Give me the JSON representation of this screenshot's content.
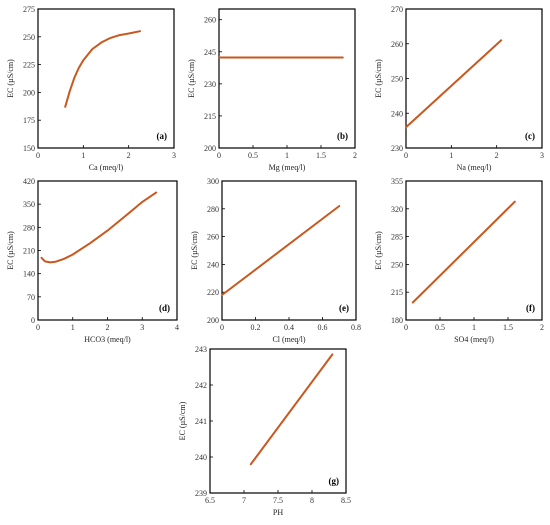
{
  "colors": {
    "curve": "#c9581f",
    "frame": "#000000",
    "tick_text": "#333333"
  },
  "chart_data": [
    {
      "type": "line",
      "tag": "(a)",
      "xlabel": "Ca (meq/l)",
      "ylabel": "EC (µS/cm)",
      "xlim": [
        0,
        3
      ],
      "ylim": [
        150,
        275
      ],
      "xticks": [
        "0",
        "1",
        "2",
        "3"
      ],
      "yticks": [
        "150",
        "175",
        "200",
        "225",
        "250",
        "275"
      ],
      "grid": false,
      "series": [
        {
          "x": [
            0.6,
            0.7,
            0.8,
            0.9,
            1.0,
            1.2,
            1.4,
            1.6,
            1.8,
            2.0,
            2.25
          ],
          "y": [
            187,
            201,
            213,
            222,
            229,
            239,
            245,
            249,
            251.5,
            253,
            255
          ]
        }
      ]
    },
    {
      "type": "line",
      "tag": "(b)",
      "xlabel": "Mg (meq/l)",
      "ylabel": "EC (µS/cm)",
      "xlim": [
        0,
        2
      ],
      "ylim": [
        200,
        265
      ],
      "xticks": [
        "0",
        "0.5",
        "1",
        "1.5",
        "2"
      ],
      "yticks": [
        "200",
        "215",
        "230",
        "245",
        "260"
      ],
      "grid": false,
      "series": [
        {
          "x": [
            0,
            1.82
          ],
          "y": [
            242.3,
            242.3
          ]
        }
      ]
    },
    {
      "type": "line",
      "tag": "(c)",
      "xlabel": "Na (meq/l)",
      "ylabel": "EC (µS/cm)",
      "xlim": [
        0,
        3
      ],
      "ylim": [
        230,
        270
      ],
      "xticks": [
        "0",
        "1",
        "2",
        "3"
      ],
      "yticks": [
        "230",
        "240",
        "250",
        "260",
        "270"
      ],
      "grid": false,
      "series": [
        {
          "x": [
            0,
            2.1
          ],
          "y": [
            236,
            261
          ]
        }
      ]
    },
    {
      "type": "line",
      "tag": "(d)",
      "xlabel": "HCO3 (meq/l)",
      "ylabel": "EC (µS/cm)",
      "xlim": [
        0,
        4
      ],
      "ylim": [
        0,
        420
      ],
      "xticks": [
        "0",
        "1",
        "2",
        "3",
        "4"
      ],
      "yticks": [
        "0",
        "70",
        "140",
        "210",
        "280",
        "350",
        "420"
      ],
      "grid": false,
      "series": [
        {
          "x": [
            0.1,
            0.2,
            0.35,
            0.5,
            0.75,
            1.0,
            1.5,
            2.0,
            2.5,
            3.0,
            3.4
          ],
          "y": [
            188,
            177,
            174,
            176,
            185,
            198,
            232,
            270,
            313,
            357,
            385
          ]
        }
      ]
    },
    {
      "type": "line",
      "tag": "(e)",
      "xlabel": "Cl (meq/l)",
      "ylabel": "EC (µS/cm)",
      "xlim": [
        0,
        0.8
      ],
      "ylim": [
        200,
        300
      ],
      "xticks": [
        "0",
        "0.2",
        "0.4",
        "0.6",
        "0.8"
      ],
      "yticks": [
        "200",
        "220",
        "240",
        "260",
        "280",
        "300"
      ],
      "grid": false,
      "series": [
        {
          "x": [
            0,
            0.7
          ],
          "y": [
            218,
            282
          ]
        }
      ]
    },
    {
      "type": "line",
      "tag": "(f)",
      "xlabel": "SO4 (meq/l)",
      "ylabel": "EC (µS/cm)",
      "xlim": [
        0,
        2
      ],
      "ylim": [
        180,
        355
      ],
      "xticks": [
        "0",
        "0.5",
        "1",
        "1.5",
        "2"
      ],
      "yticks": [
        "180",
        "215",
        "250",
        "285",
        "320",
        "355"
      ],
      "grid": false,
      "series": [
        {
          "x": [
            0.1,
            1.6
          ],
          "y": [
            202,
            329
          ]
        }
      ]
    },
    {
      "type": "line",
      "tag": "(g)",
      "xlabel": "PH",
      "ylabel": "EC (µS/cm)",
      "xlim": [
        6.5,
        8.5
      ],
      "ylim": [
        239,
        243
      ],
      "xticks": [
        "6.5",
        "7",
        "7.5",
        "8",
        "8.5"
      ],
      "yticks": [
        "239",
        "240",
        "241",
        "242",
        "243"
      ],
      "grid": false,
      "series": [
        {
          "x": [
            7.1,
            8.3
          ],
          "y": [
            239.8,
            242.85
          ]
        }
      ]
    }
  ]
}
